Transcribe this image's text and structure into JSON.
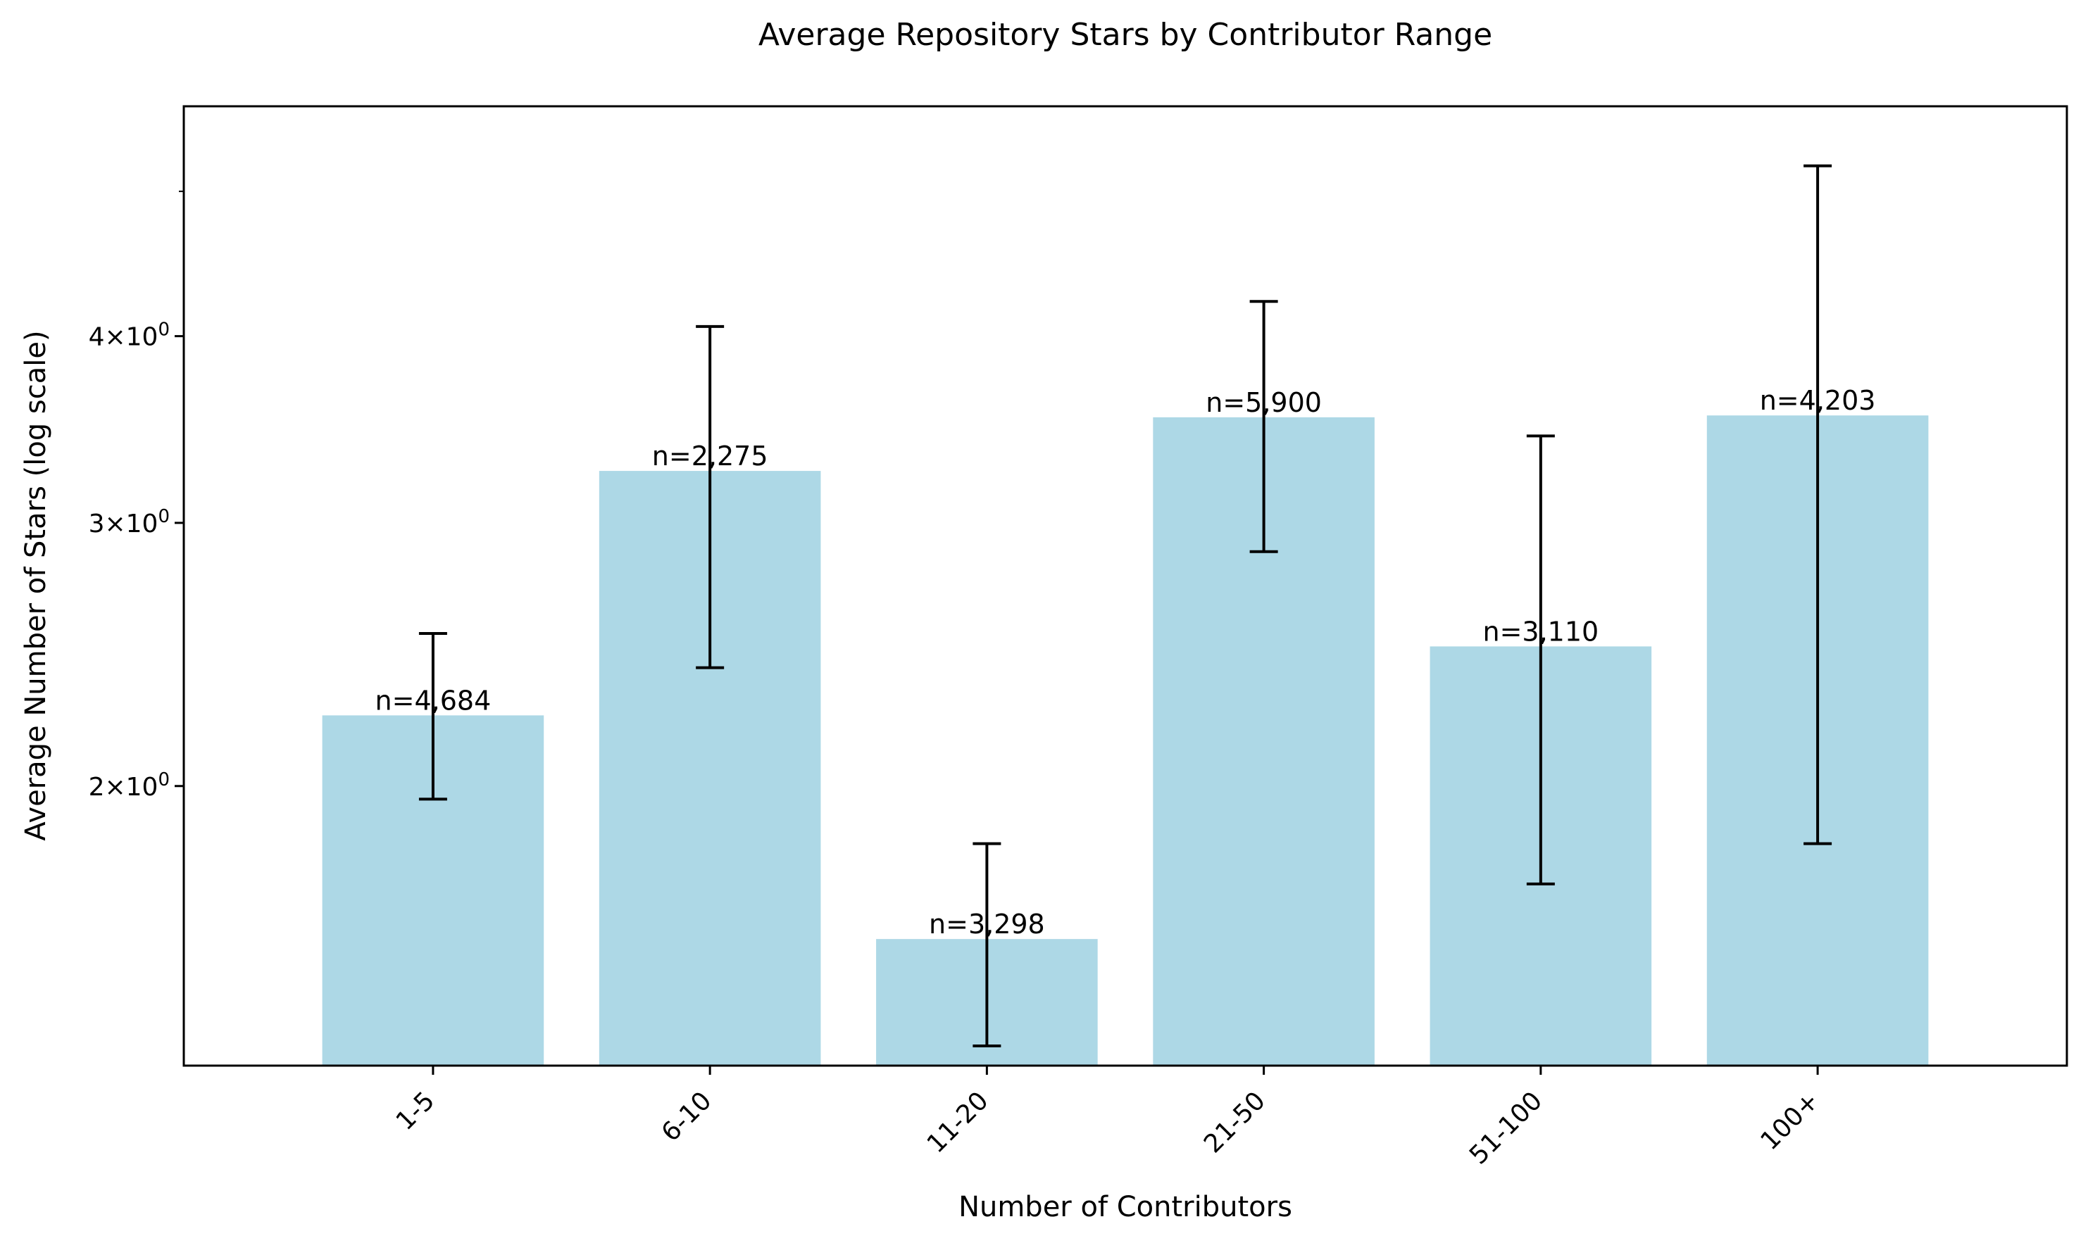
{
  "chart_data": {
    "type": "bar",
    "title": "Average Repository Stars by Contributor Range",
    "xlabel": "Number of Contributors",
    "ylabel": "Average Number of Stars (log scale)",
    "yscale": "log",
    "ylim": [
      1.3,
      5.7
    ],
    "grid": false,
    "categories": [
      "1-5",
      "6-10",
      "11-20",
      "21-50",
      "51-100",
      "100+"
    ],
    "values": [
      2.23,
      3.25,
      1.58,
      3.53,
      2.48,
      3.54
    ],
    "error_bars": {
      "lower": [
        1.96,
        2.4,
        1.34,
        2.87,
        1.72,
        1.83
      ],
      "upper": [
        2.53,
        4.06,
        1.83,
        4.22,
        3.43,
        5.2
      ]
    },
    "bar_labels": [
      "n=4,684",
      "n=2,275",
      "n=3,298",
      "n=5,900",
      "n=3,110",
      "n=4,203"
    ],
    "yticks": [
      {
        "value": 2,
        "mantissa": "2",
        "base": "10",
        "exp": "0"
      },
      {
        "value": 3,
        "mantissa": "3",
        "base": "10",
        "exp": "0"
      },
      {
        "value": 4,
        "mantissa": "4",
        "base": "10",
        "exp": "0"
      }
    ],
    "minor_yticks": [
      5
    ],
    "colors": {
      "bar": "#add8e6",
      "error": "#000000",
      "axis": "#000000"
    }
  }
}
